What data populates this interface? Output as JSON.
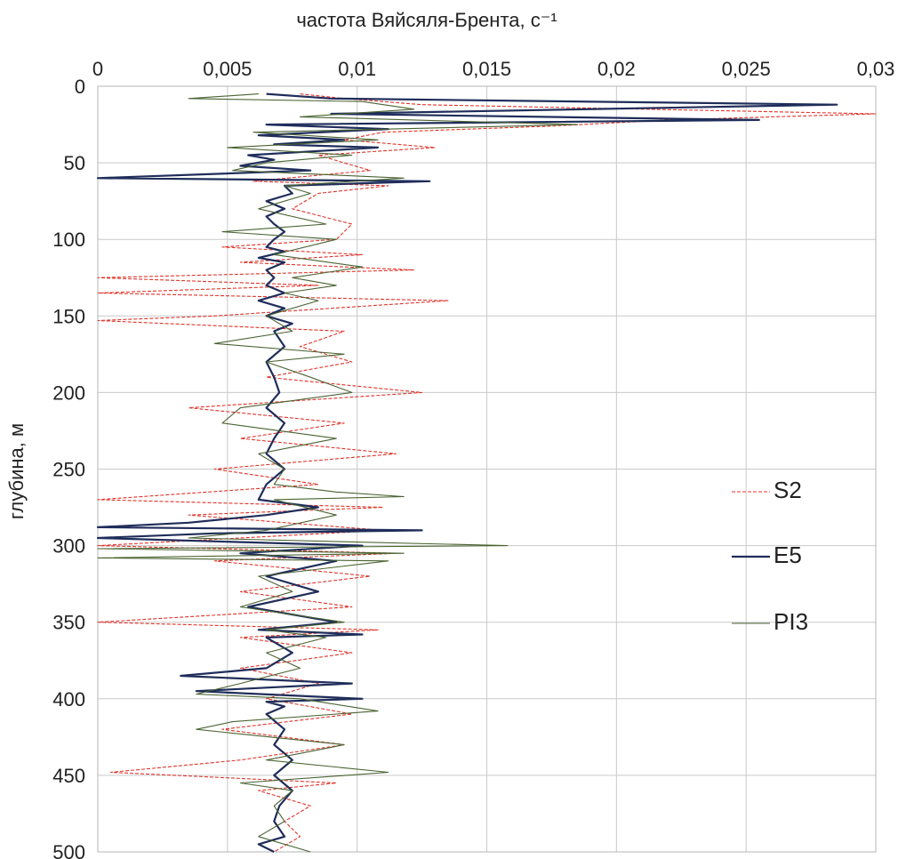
{
  "chart_data": {
    "type": "line",
    "title": "",
    "xlabel": "частота Вяйсяля-Брента, с⁻¹",
    "ylabel": "глубина, м",
    "xlim": [
      0,
      0.03
    ],
    "ylim": [
      0,
      500
    ],
    "y_inverted": true,
    "x_axis_position": "top",
    "x_ticks": [
      "0",
      "0,005",
      "0,01",
      "0,015",
      "0,02",
      "0,025",
      "0,03"
    ],
    "y_ticks": [
      "0",
      "50",
      "100",
      "150",
      "200",
      "250",
      "300",
      "350",
      "400",
      "450",
      "500"
    ],
    "grid": true,
    "legend_position": "right",
    "series": [
      {
        "name": "S2",
        "color": "#e0332a",
        "style": "dashed",
        "depth": [
          5,
          8,
          12,
          18,
          22,
          26,
          30,
          35,
          40,
          45,
          55,
          62,
          65,
          70,
          80,
          90,
          100,
          105,
          110,
          115,
          120,
          125,
          130,
          135,
          140,
          150,
          153,
          160,
          170,
          180,
          190,
          200,
          210,
          220,
          230,
          240,
          250,
          260,
          270,
          275,
          280,
          290,
          300,
          305,
          310,
          320,
          330,
          340,
          350,
          355,
          360,
          370,
          380,
          390,
          400,
          410,
          420,
          430,
          440,
          448,
          455,
          460,
          470,
          480,
          490,
          500
        ],
        "freq": [
          0.0078,
          0.0095,
          0.0125,
          0.03,
          0.022,
          0.0175,
          0.011,
          0.0095,
          0.013,
          0.0085,
          0.0105,
          0.006,
          0.0112,
          0.0085,
          0.0075,
          0.0098,
          0.0092,
          0.0048,
          0.0102,
          0.0055,
          0.0122,
          0.0,
          0.0085,
          0.0,
          0.0135,
          0.0045,
          0.0,
          0.0095,
          0.0078,
          0.0098,
          0.0065,
          0.0125,
          0.0035,
          0.0095,
          0.0055,
          0.0115,
          0.0045,
          0.0085,
          0.0,
          0.011,
          0.0035,
          0.011,
          0.0,
          0.0115,
          0.0045,
          0.0105,
          0.0055,
          0.0098,
          0.0,
          0.0108,
          0.0055,
          0.0098,
          0.0055,
          0.0085,
          0.0065,
          0.0098,
          0.0048,
          0.0095,
          0.0055,
          0.0005,
          0.0092,
          0.0062,
          0.0082,
          0.0072,
          0.0078,
          0.0068
        ]
      },
      {
        "name": "E5",
        "color": "#1f2d5a",
        "style": "solid",
        "depth": [
          5,
          8,
          12,
          18,
          22,
          25,
          28,
          32,
          35,
          38,
          40,
          45,
          48,
          52,
          55,
          60,
          62,
          65,
          70,
          75,
          80,
          85,
          90,
          95,
          100,
          105,
          108,
          112,
          115,
          120,
          125,
          130,
          135,
          140,
          145,
          150,
          155,
          160,
          170,
          180,
          190,
          200,
          210,
          220,
          230,
          240,
          250,
          260,
          270,
          275,
          280,
          285,
          288,
          290,
          292,
          295,
          300,
          305,
          310,
          320,
          330,
          340,
          350,
          355,
          358,
          360,
          370,
          380,
          385,
          390,
          395,
          400,
          402,
          405,
          410,
          420,
          430,
          440,
          450,
          460,
          470,
          480,
          490,
          495,
          500
        ],
        "freq": [
          0.0065,
          0.009,
          0.0285,
          0.009,
          0.0255,
          0.0065,
          0.0112,
          0.0062,
          0.0095,
          0.0068,
          0.0108,
          0.0058,
          0.0068,
          0.0055,
          0.0082,
          0.0,
          0.0128,
          0.0072,
          0.0075,
          0.0065,
          0.0072,
          0.0065,
          0.0068,
          0.0072,
          0.0068,
          0.0065,
          0.0072,
          0.0062,
          0.0072,
          0.0065,
          0.0068,
          0.0065,
          0.0072,
          0.0062,
          0.0072,
          0.0065,
          0.0075,
          0.0068,
          0.0072,
          0.0065,
          0.0068,
          0.007,
          0.0065,
          0.0072,
          0.0068,
          0.0065,
          0.0072,
          0.0065,
          0.0062,
          0.0085,
          0.0065,
          0.0035,
          0.0,
          0.0125,
          0.0045,
          0.0,
          0.0102,
          0.0055,
          0.0092,
          0.0065,
          0.0085,
          0.0058,
          0.0092,
          0.0062,
          0.0102,
          0.0065,
          0.0075,
          0.0065,
          0.0032,
          0.0098,
          0.0038,
          0.0102,
          0.0065,
          0.0072,
          0.0065,
          0.0072,
          0.0068,
          0.0075,
          0.0068,
          0.0075,
          0.007,
          0.0068,
          0.0072,
          0.0062,
          0.0068
        ]
      },
      {
        "name": "PI3",
        "color": "#4a6332",
        "style": "solid",
        "depth": [
          5,
          8,
          10,
          15,
          20,
          25,
          30,
          35,
          40,
          45,
          50,
          55,
          60,
          65,
          70,
          80,
          90,
          95,
          100,
          110,
          118,
          125,
          130,
          135,
          140,
          150,
          160,
          168,
          175,
          180,
          190,
          200,
          210,
          220,
          230,
          240,
          250,
          260,
          265,
          268,
          270,
          280,
          290,
          295,
          300,
          302,
          305,
          308,
          310,
          320,
          330,
          340,
          350,
          355,
          360,
          370,
          380,
          390,
          397,
          400,
          408,
          415,
          420,
          430,
          440,
          448,
          455,
          460,
          470,
          480,
          490,
          500
        ],
        "freq": [
          0.0062,
          0.0035,
          0.0102,
          0.0122,
          0.0078,
          0.0185,
          0.006,
          0.0108,
          0.005,
          0.0098,
          0.0065,
          0.0052,
          0.0118,
          0.0072,
          0.0082,
          0.0062,
          0.0088,
          0.0048,
          0.0092,
          0.0068,
          0.0102,
          0.0075,
          0.0092,
          0.0072,
          0.0085,
          0.0065,
          0.0075,
          0.0045,
          0.0095,
          0.0065,
          0.0082,
          0.0098,
          0.0055,
          0.0048,
          0.0092,
          0.0062,
          0.0072,
          0.0068,
          0.0092,
          0.0118,
          0.0068,
          0.0092,
          0.0065,
          0.0035,
          0.0158,
          0.0,
          0.0118,
          0.0,
          0.0112,
          0.0062,
          0.0075,
          0.0055,
          0.0095,
          0.0065,
          0.0088,
          0.0065,
          0.0078,
          0.0055,
          0.0038,
          0.0078,
          0.0108,
          0.0052,
          0.0038,
          0.0095,
          0.0065,
          0.0112,
          0.0055,
          0.0075,
          0.0068,
          0.0072,
          0.0062,
          0.0082
        ]
      }
    ]
  }
}
